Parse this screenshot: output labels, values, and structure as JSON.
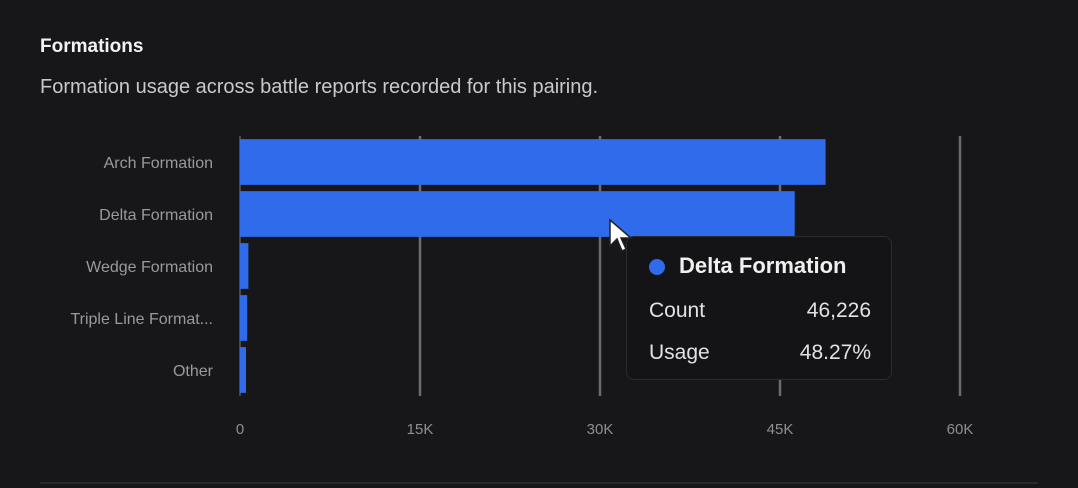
{
  "header": {
    "title": "Formations",
    "subtitle": "Formation usage across battle reports recorded for this pairing."
  },
  "chart_data": {
    "type": "bar",
    "orientation": "horizontal",
    "categories": [
      "Arch Formation",
      "Delta Formation",
      "Wedge Formation",
      "Triple Line Format...",
      "Other"
    ],
    "values": [
      48800,
      46226,
      700,
      600,
      500
    ],
    "xlim": [
      0,
      60000
    ],
    "x_ticks": [
      0,
      15000,
      30000,
      45000,
      60000
    ],
    "x_tick_labels": [
      "0",
      "15K",
      "30K",
      "45K",
      "60K"
    ],
    "grid": "vertical",
    "bar_color": "#2f6bea"
  },
  "tooltip": {
    "series_name": "Delta Formation",
    "rows": [
      {
        "label": "Count",
        "value": "46,226"
      },
      {
        "label": "Usage",
        "value": "48.27%"
      }
    ]
  }
}
